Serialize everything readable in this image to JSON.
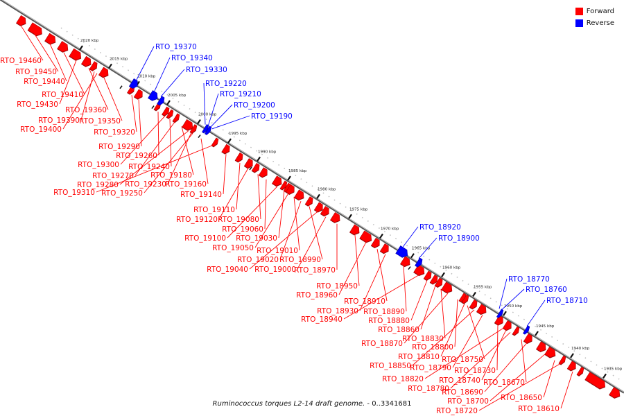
{
  "legend": {
    "forward_label": "Forward",
    "reverse_label": "Reverse",
    "forward_color": "#ff0000",
    "reverse_color": "#0000ff"
  },
  "caption": {
    "organism": "Ruminococcus torques L2-14 draft genome.",
    "range": "- 0..3341681"
  },
  "colors": {
    "axis": "#707070",
    "ticks": "#111111",
    "forward": "#ff0000",
    "reverse": "#0000ff"
  },
  "kbp_ticks": [
    "2020 kbp",
    "2015 kbp",
    "2010 kbp",
    "2005 kbp",
    "2000 kbp",
    "1995 kbp",
    "1990 kbp",
    "1985 kbp",
    "1980 kbp",
    "1975 kbp",
    "1970 kbp",
    "1965 kbp",
    "1960 kbp",
    "1955 kbp",
    "1950 kbp",
    "1945 kbp",
    "1940 kbp",
    "1935 kbp"
  ],
  "forward_genes": [
    "RTO_19460",
    "RTO_19450",
    "RTO_19440",
    "RTO_19410",
    "RTO_19430",
    "RTO_19360",
    "RTO_19390",
    "RTO_19350",
    "RTO_19400",
    "RTO_19320",
    "RTO_19290",
    "RTO_19260",
    "RTO_19300",
    "RTO_19240",
    "RTO_19270",
    "RTO_19180",
    "RTO_19280",
    "RTO_19230",
    "RTO_19160",
    "RTO_19310",
    "RTO_19250",
    "RTO_19140",
    "RTO_19110",
    "RTO_19120",
    "RTO_19080",
    "RTO_19060",
    "RTO_19100",
    "RTO_19030",
    "RTO_19050",
    "RTO_19010",
    "RTO_19020",
    "RTO_18990",
    "RTO_19040",
    "RTO_19000",
    "RTO_18970",
    "RTO_18950",
    "RTO_18960",
    "RTO_18910",
    "RTO_18930",
    "RTO_18890",
    "RTO_18940",
    "RTO_18880",
    "RTO_18860",
    "RTO_18830",
    "RTO_18870",
    "RTO_18800",
    "RTO_18810",
    "RTO_18750",
    "RTO_18850",
    "RTO_18790",
    "RTO_18730",
    "RTO_18820",
    "RTO_18740",
    "RTO_18780",
    "RTO_18670",
    "RTO_18690",
    "RTO_18700",
    "RTO_18650",
    "RTO_18720",
    "RTO_18610"
  ],
  "reverse_genes": [
    "RTO_19370",
    "RTO_19340",
    "RTO_19330",
    "RTO_19220",
    "RTO_19210",
    "RTO_19200",
    "RTO_19190",
    "RTO_18920",
    "RTO_18900",
    "RTO_18770",
    "RTO_18760",
    "RTO_18710"
  ]
}
